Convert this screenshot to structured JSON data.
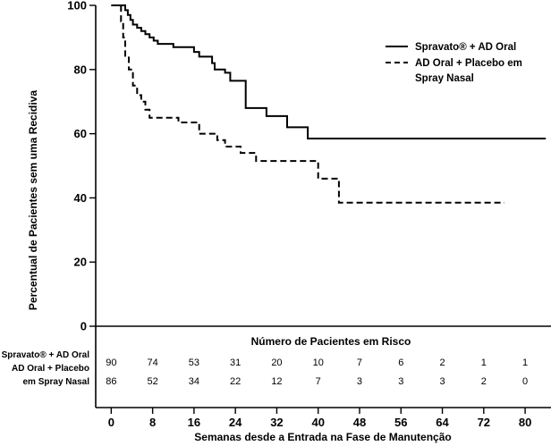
{
  "chart_data": {
    "type": "line",
    "subtype": "kaplan-meier",
    "ylabel": "Percentual de Pacientes sem uma Recidiva",
    "xlabel": "Semanas desde a Entrada na Fase de Manutenção",
    "y_ticks": [
      "0",
      "20",
      "40",
      "60",
      "80",
      "100"
    ],
    "x_ticks": [
      "0",
      "8",
      "16",
      "24",
      "32",
      "40",
      "48",
      "56",
      "64",
      "72",
      "80"
    ],
    "xlim": [
      -3,
      85
    ],
    "ylim": [
      0,
      100
    ],
    "grid": false,
    "legend_position": "top-right",
    "series": [
      {
        "name": "Spravato® + AD Oral",
        "style": "solid",
        "x": [
          0,
          2.3,
          2.7,
          3.2,
          3.7,
          4.2,
          5,
          5.8,
          6.6,
          7.4,
          8.2,
          9,
          10.5,
          12,
          15,
          16,
          17,
          18,
          19.5,
          20,
          21,
          22,
          23,
          24,
          26,
          28,
          30,
          32,
          34,
          36,
          38,
          40,
          46,
          84
        ],
        "y": [
          100,
          100,
          98.5,
          97,
          95.5,
          94,
          93,
          92,
          91,
          90,
          89,
          88,
          88,
          87,
          87,
          85.5,
          84,
          84,
          82,
          80,
          80,
          79,
          76.5,
          76.5,
          68,
          68,
          65.5,
          65.5,
          62,
          62,
          58.5,
          58.5,
          58.5,
          58.5
        ]
      },
      {
        "name": "AD Oral + Placebo em Spray Nasal",
        "style": "dashed",
        "x": [
          0,
          1.7,
          1.9,
          2.3,
          2.7,
          3.4,
          4.2,
          5,
          5.8,
          6.6,
          7.4,
          8.2,
          10.5,
          13,
          15,
          17,
          19,
          20.5,
          22,
          24,
          25,
          26,
          28,
          30,
          34,
          38,
          40,
          42,
          44,
          46,
          58,
          76
        ],
        "y": [
          100,
          100,
          95,
          90,
          84,
          80,
          75,
          72,
          70,
          67.5,
          65,
          65,
          65,
          63.5,
          63.5,
          60,
          60,
          58,
          56,
          56,
          54,
          54,
          51.5,
          51.5,
          51.5,
          51.5,
          46,
          46,
          38.5,
          38.5,
          38.5,
          38.5
        ]
      }
    ],
    "risk_table": {
      "title": "Número de Pacientes em Risco",
      "rows": [
        {
          "label": "Spravato® + AD Oral",
          "values": [
            "90",
            "74",
            "53",
            "31",
            "20",
            "10",
            "7",
            "6",
            "2",
            "1",
            "1"
          ]
        },
        {
          "label_lines": [
            "AD Oral + Placebo",
            "em Spray Nasal"
          ],
          "values": [
            "86",
            "52",
            "34",
            "22",
            "12",
            "7",
            "3",
            "3",
            "3",
            "2",
            "0"
          ]
        }
      ]
    }
  },
  "legend": {
    "items": [
      {
        "label_lines": [
          "Spravato® + AD Oral"
        ]
      },
      {
        "label_lines": [
          "AD Oral + Placebo em",
          "Spray Nasal"
        ]
      }
    ]
  }
}
